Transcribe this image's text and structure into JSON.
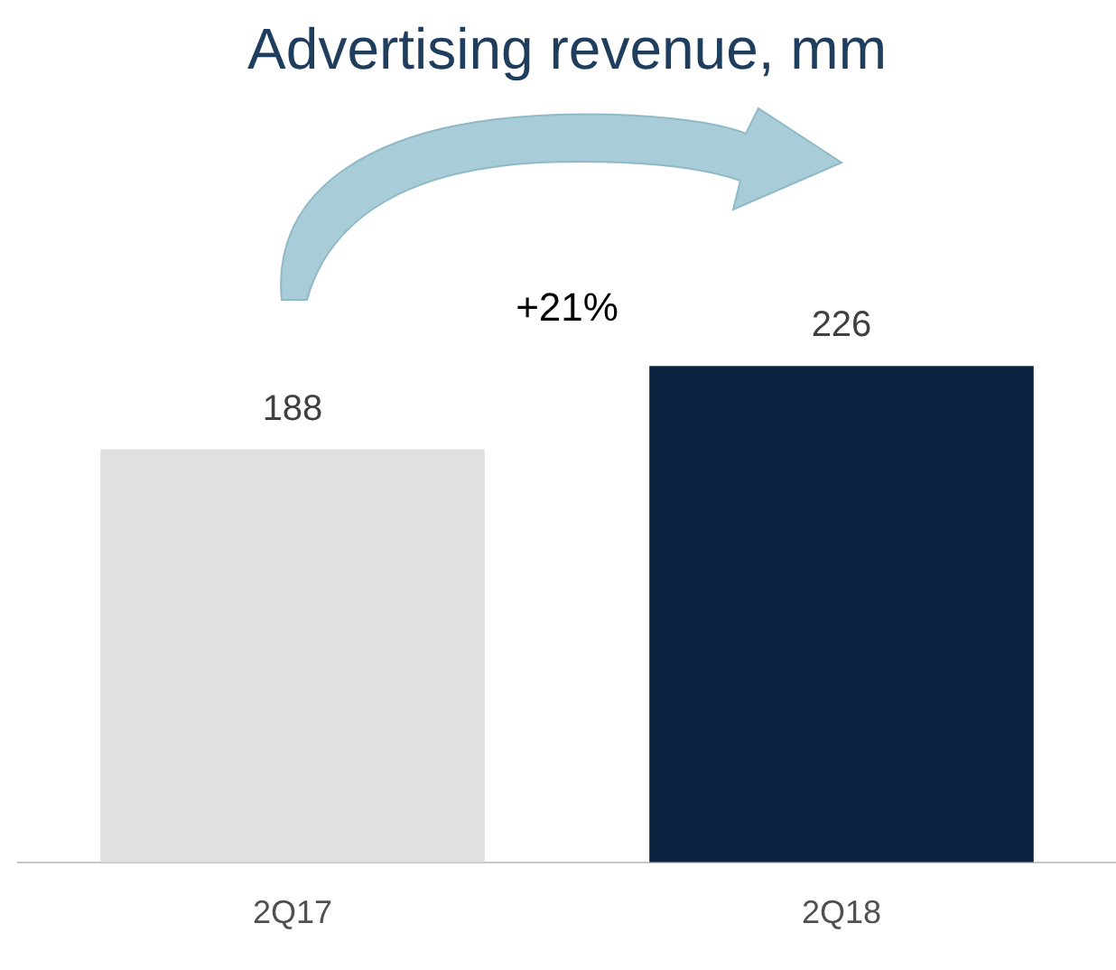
{
  "chart_data": {
    "type": "bar",
    "title": "Advertising revenue, mm",
    "categories": [
      "2Q17",
      "2Q18"
    ],
    "values": [
      188,
      226
    ],
    "colors": [
      "#e0e0e0",
      "#0b2540"
    ],
    "data_labels": true,
    "annotations": [
      "+21%"
    ]
  }
}
